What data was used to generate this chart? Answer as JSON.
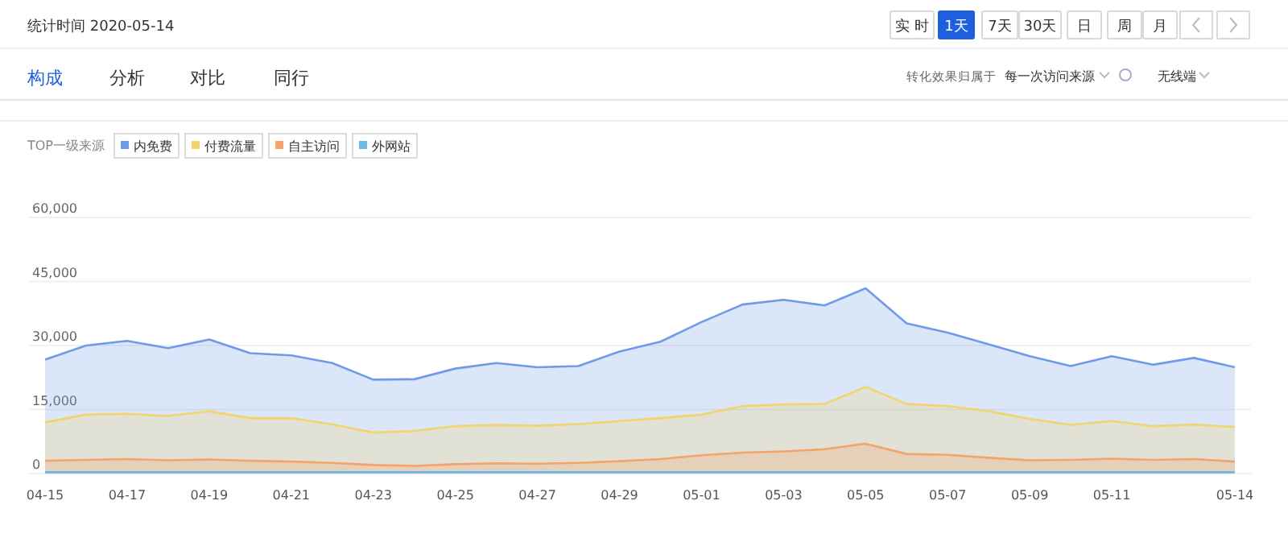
{
  "chart_data": {
    "type": "area",
    "subtitle": "统计时间 2020-05-14",
    "annotations": [
      "实 时",
      "1天",
      "7天",
      "30天",
      "日",
      "周",
      "月",
      "构成",
      "分析",
      "对比",
      "同行",
      "转化效果归属于",
      "每一次访问来源",
      "无线端"
    ],
    "legend_title": "TOP一级来源",
    "categories": [
      "04-15",
      null,
      "04-17",
      null,
      "04-19",
      null,
      "04-21",
      null,
      "04-23",
      null,
      "04-25",
      null,
      "04-27",
      null,
      "04-29",
      null,
      "05-01",
      null,
      "05-03",
      null,
      "05-05",
      null,
      "05-07",
      null,
      "05-09",
      null,
      "05-11",
      null,
      null,
      "05-14"
    ],
    "series": [
      {
        "name": "内免费",
        "color": "#6f9ae8",
        "values": [
          26700,
          30000,
          31100,
          29400,
          31400,
          28200,
          27700,
          25900,
          22000,
          22100,
          24600,
          25900,
          24900,
          25200,
          28600,
          30900,
          35500,
          39600,
          40700,
          39400,
          43400,
          35200,
          33000,
          30300,
          27500,
          25200,
          27500,
          25500,
          27100,
          24900
        ]
      },
      {
        "name": "付费流量",
        "color": "#f2d46a",
        "values": [
          12000,
          13800,
          14000,
          13500,
          14600,
          13000,
          13000,
          11500,
          9600,
          10000,
          11100,
          11400,
          11200,
          11600,
          12300,
          13000,
          13800,
          15800,
          16200,
          16300,
          20300,
          16300,
          15800,
          14600,
          12800,
          11400,
          12300,
          11100,
          11500,
          10900
        ]
      },
      {
        "name": "自主访问",
        "color": "#f5a36a",
        "values": [
          3000,
          3200,
          3400,
          3100,
          3300,
          3000,
          2800,
          2500,
          2000,
          1800,
          2200,
          2400,
          2300,
          2500,
          2900,
          3400,
          4300,
          4900,
          5200,
          5700,
          7000,
          4600,
          4400,
          3700,
          3100,
          3200,
          3500,
          3200,
          3400,
          2800
        ]
      },
      {
        "name": "外网站",
        "color": "#6cb8ec",
        "values": [
          300,
          300,
          300,
          300,
          300,
          300,
          300,
          300,
          300,
          300,
          300,
          300,
          300,
          300,
          300,
          300,
          300,
          300,
          300,
          300,
          300,
          300,
          300,
          300,
          300,
          300,
          300,
          300,
          300,
          300
        ]
      }
    ],
    "ylim": [
      0,
      60000
    ],
    "yticks": [
      {
        "value": 0,
        "label": "0"
      },
      {
        "value": 15000,
        "label": "15,000"
      },
      {
        "value": 30000,
        "label": "30,000"
      },
      {
        "value": 45000,
        "label": "45,000"
      },
      {
        "value": 60000,
        "label": "60,000"
      }
    ],
    "grid": "y",
    "legend": "top left"
  }
}
